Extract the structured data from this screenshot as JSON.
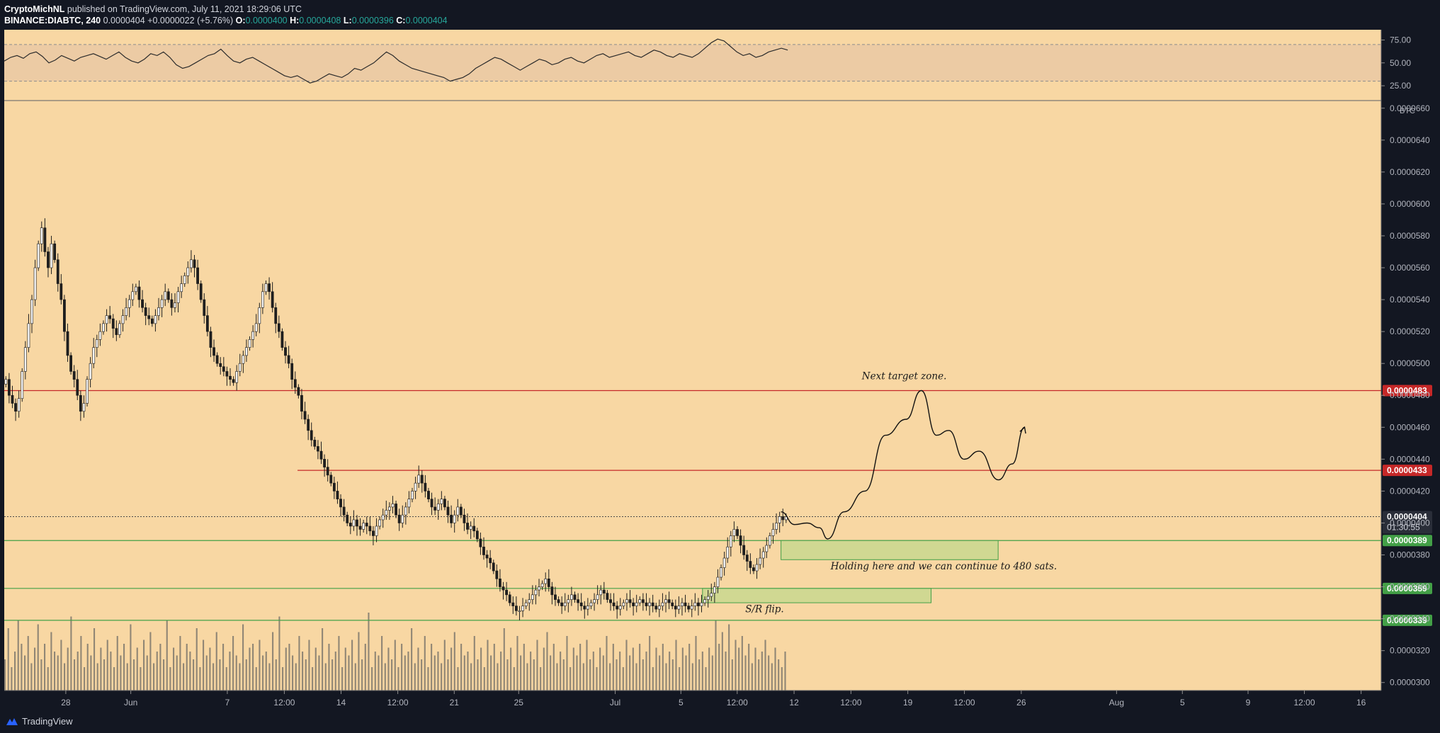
{
  "header": {
    "author": "CryptoMichNL",
    "published": " published on TradingView.com, July 11, 2021 18:29:06 UTC",
    "symbol": "BINANCE:DIABTC, 240",
    "last": "0.0000404",
    "change": "+0.0000022 (+5.76%)",
    "o_label": "O:",
    "o": "0.0000400",
    "h_label": "H:",
    "h": "0.0000408",
    "l_label": "L:",
    "l": "0.0000396",
    "c_label": "C:",
    "c": "0.0000404"
  },
  "footer": {
    "brand": "TradingView"
  },
  "colors": {
    "background": "#f8d7a3",
    "red_line": "#c62828",
    "green_line": "#43a047",
    "zone_fill": "#c9d88f",
    "price_dark": "#2a2e39",
    "candle": "#1e1e1e"
  },
  "chart_data": [
    {
      "type": "line",
      "panel": "RSI",
      "yticks": [
        "75.00",
        "50.00",
        "25.00"
      ],
      "ylim": [
        15,
        80
      ],
      "band": [
        30,
        70
      ],
      "values": [
        52,
        56,
        58,
        55,
        60,
        62,
        57,
        50,
        53,
        58,
        55,
        52,
        56,
        58,
        60,
        57,
        54,
        58,
        62,
        56,
        52,
        50,
        54,
        60,
        58,
        62,
        56,
        48,
        44,
        46,
        50,
        54,
        58,
        60,
        65,
        58,
        52,
        50,
        54,
        56,
        52,
        48,
        44,
        40,
        36,
        34,
        36,
        32,
        28,
        30,
        34,
        38,
        36,
        34,
        38,
        44,
        42,
        46,
        50,
        56,
        62,
        58,
        52,
        48,
        44,
        42,
        40,
        38,
        36,
        34,
        30,
        32,
        34,
        38,
        44,
        48,
        52,
        56,
        54,
        50,
        46,
        42,
        46,
        50,
        54,
        52,
        48,
        50,
        54,
        56,
        52,
        50,
        54,
        58,
        60,
        56,
        58,
        60,
        62,
        58,
        56,
        60,
        64,
        62,
        58,
        56,
        60,
        58,
        56,
        60,
        66,
        72,
        76,
        74,
        68,
        62,
        58,
        60,
        56,
        58,
        62,
        64,
        66,
        64
      ],
      "x_extent": [
        0,
        0.569
      ]
    },
    {
      "type": "candlestick",
      "panel": "price",
      "unit": "BTC",
      "yticks": [
        "0.0000660",
        "0.0000640",
        "0.0000620",
        "0.0000600",
        "0.0000580",
        "0.0000560",
        "0.0000540",
        "0.0000520",
        "0.0000500",
        "0.0000480",
        "0.0000460",
        "0.0000440",
        "0.0000420",
        "0.0000400",
        "0.0000380",
        "0.0000360",
        "0.0000340",
        "0.0000320",
        "0.0000300"
      ],
      "ylim": [
        2.95e-05,
        6.63e-05
      ],
      "xticks": [
        {
          "label": "28",
          "pos": 0.0447
        },
        {
          "label": "Jun",
          "pos": 0.0919
        },
        {
          "label": "7",
          "pos": 0.162
        },
        {
          "label": "12:00",
          "pos": 0.2034
        },
        {
          "label": "14",
          "pos": 0.2446
        },
        {
          "label": "12:00",
          "pos": 0.2858
        },
        {
          "label": "21",
          "pos": 0.3268
        },
        {
          "label": "25",
          "pos": 0.3736
        },
        {
          "label": "Jul",
          "pos": 0.4437
        },
        {
          "label": "5",
          "pos": 0.4914
        },
        {
          "label": "12:00",
          "pos": 0.5323
        },
        {
          "label": "12",
          "pos": 0.5736
        },
        {
          "label": "12:00",
          "pos": 0.6149
        },
        {
          "label": "19",
          "pos": 0.6562
        },
        {
          "label": "12:00",
          "pos": 0.6973
        },
        {
          "label": "26",
          "pos": 0.7386
        },
        {
          "label": "Aug",
          "pos": 0.8078
        },
        {
          "label": "5",
          "pos": 0.8556
        },
        {
          "label": "9",
          "pos": 0.9033
        },
        {
          "label": "12:00",
          "pos": 0.9442
        },
        {
          "label": "16",
          "pos": 0.9854
        }
      ],
      "closes": [
        490,
        480,
        475,
        470,
        478,
        495,
        510,
        525,
        540,
        560,
        575,
        585,
        570,
        560,
        575,
        565,
        550,
        540,
        520,
        505,
        495,
        490,
        480,
        470,
        475,
        490,
        500,
        510,
        515,
        520,
        525,
        530,
        528,
        522,
        518,
        525,
        530,
        535,
        540,
        545,
        548,
        540,
        535,
        530,
        528,
        525,
        530,
        535,
        540,
        545,
        540,
        535,
        538,
        545,
        550,
        555,
        560,
        565,
        560,
        550,
        540,
        530,
        520,
        510,
        505,
        500,
        498,
        495,
        492,
        490,
        488,
        495,
        500,
        505,
        510,
        515,
        520,
        525,
        535,
        545,
        550,
        545,
        535,
        525,
        520,
        510,
        505,
        500,
        490,
        485,
        480,
        470,
        465,
        458,
        452,
        448,
        445,
        440,
        435,
        430,
        425,
        420,
        415,
        410,
        405,
        400,
        398,
        402,
        398,
        396,
        400,
        398,
        395,
        392,
        398,
        402,
        405,
        408,
        410,
        412,
        405,
        400,
        405,
        410,
        415,
        420,
        425,
        430,
        425,
        420,
        415,
        410,
        408,
        412,
        415,
        410,
        405,
        400,
        405,
        410,
        405,
        400,
        396,
        398,
        395,
        390,
        385,
        380,
        378,
        375,
        370,
        365,
        360,
        358,
        355,
        350,
        348,
        345,
        345,
        348,
        350,
        352,
        355,
        358,
        360,
        362,
        365,
        360,
        355,
        352,
        350,
        348,
        350,
        352,
        355,
        352,
        350,
        348,
        346,
        348,
        350,
        352,
        355,
        358,
        356,
        352,
        350,
        348,
        346,
        348,
        350,
        352,
        350,
        348,
        350,
        352,
        350,
        348,
        350,
        348,
        346,
        348,
        350,
        352,
        350,
        348,
        346,
        348,
        350,
        348,
        346,
        348,
        350,
        348,
        350,
        352,
        354,
        356,
        360,
        366,
        372,
        378,
        385,
        392,
        396,
        392,
        386,
        380,
        376,
        372,
        370,
        374,
        378,
        382,
        386,
        392,
        396,
        400,
        404,
        402,
        404
      ],
      "volume": [
        40,
        80,
        30,
        50,
        90,
        60,
        45,
        70,
        35,
        55,
        85,
        40,
        60,
        30,
        75,
        50,
        45,
        65,
        35,
        55,
        95,
        40,
        50,
        70,
        30,
        60,
        45,
        80,
        35,
        55,
        40,
        65,
        50,
        30,
        70,
        45,
        60,
        35,
        85,
        40,
        55,
        30,
        65,
        45,
        75,
        35,
        50,
        60,
        40,
        90,
        30,
        55,
        45,
        70,
        35,
        60,
        50,
        40,
        80,
        30,
        65,
        45,
        55,
        35,
        75,
        40,
        60,
        30,
        50,
        70,
        45,
        35,
        85,
        40,
        55,
        60,
        30,
        65,
        45,
        50,
        35,
        75,
        40,
        95,
        30,
        55,
        60,
        45,
        35,
        70,
        50,
        40,
        65,
        30,
        55,
        45,
        80,
        35,
        60,
        40,
        50,
        70,
        30,
        55,
        45,
        65,
        35,
        75,
        40,
        60,
        100,
        30,
        50,
        45,
        70,
        35,
        55,
        40,
        65,
        30,
        60,
        45,
        50,
        80,
        35,
        55,
        40,
        70,
        30,
        60,
        45,
        50,
        35,
        65,
        40,
        55,
        75,
        30,
        60,
        45,
        50,
        35,
        70,
        40,
        55,
        30,
        65,
        45,
        60,
        35,
        50,
        80,
        40,
        55,
        30,
        70,
        45,
        60,
        35,
        50,
        40,
        65,
        30,
        55,
        75,
        45,
        60,
        35,
        50,
        40,
        70,
        30,
        55,
        45,
        60,
        35,
        65,
        40,
        50,
        30,
        55,
        45,
        70,
        35,
        60,
        40,
        50,
        30,
        65,
        45,
        55,
        35,
        60,
        40,
        50,
        70,
        30,
        55,
        45,
        60,
        35,
        50,
        40,
        65,
        30,
        55,
        45,
        60,
        35,
        70,
        40,
        50,
        30,
        55,
        45,
        90,
        60,
        75,
        50,
        85,
        40,
        65,
        55,
        70,
        45,
        60,
        35,
        55,
        40,
        50,
        65,
        45,
        35,
        55,
        40,
        30,
        50
      ],
      "levels": [
        {
          "label": "0.0000483",
          "value": 4.83e-05,
          "kind": "red",
          "from": 0
        },
        {
          "label": "0.0000433",
          "value": 4.33e-05,
          "kind": "red",
          "from": 0.213
        },
        {
          "label": "0.0000389",
          "value": 3.89e-05,
          "kind": "green",
          "from": 0
        },
        {
          "label": "0.0000359",
          "value": 3.59e-05,
          "kind": "green",
          "from": 0
        },
        {
          "label": "0.0000339",
          "value": 3.39e-05,
          "kind": "green",
          "from": 0
        }
      ],
      "last_price": {
        "value": 4.04e-05,
        "label": "0.0000404",
        "countdown": "01:30:55"
      },
      "zones": [
        {
          "x": [
            0.5641,
            0.7218
          ],
          "y": [
            3.77e-05,
            3.89e-05
          ]
        },
        {
          "x": [
            0.5071,
            0.6731
          ],
          "y": [
            3.5e-05,
            3.59e-05
          ]
        }
      ],
      "projection": [
        [
          0.5641,
          4.07e-05
        ],
        [
          0.574,
          3.99e-05
        ],
        [
          0.583,
          4e-05
        ],
        [
          0.592,
          3.97e-05
        ],
        [
          0.598,
          3.9e-05
        ],
        [
          0.61,
          4.07e-05
        ],
        [
          0.625,
          4.2e-05
        ],
        [
          0.64,
          4.55e-05
        ],
        [
          0.655,
          4.65e-05
        ],
        [
          0.666,
          4.83e-05
        ],
        [
          0.677,
          4.55e-05
        ],
        [
          0.686,
          4.58e-05
        ],
        [
          0.697,
          4.4e-05
        ],
        [
          0.708,
          4.45e-05
        ],
        [
          0.722,
          4.27e-05
        ],
        [
          0.732,
          4.37e-05
        ],
        [
          0.741,
          4.6e-05
        ]
      ],
      "annotations": [
        {
          "text": "Next target zone.",
          "x": 0.6536,
          "y": 4.9e-05
        },
        {
          "text": "Holding here and we can continue to 480 sats.",
          "x": 0.6823,
          "y": 3.71e-05
        },
        {
          "text": "S/R flip.",
          "x": 0.5522,
          "y": 3.44e-05
        }
      ]
    }
  ]
}
